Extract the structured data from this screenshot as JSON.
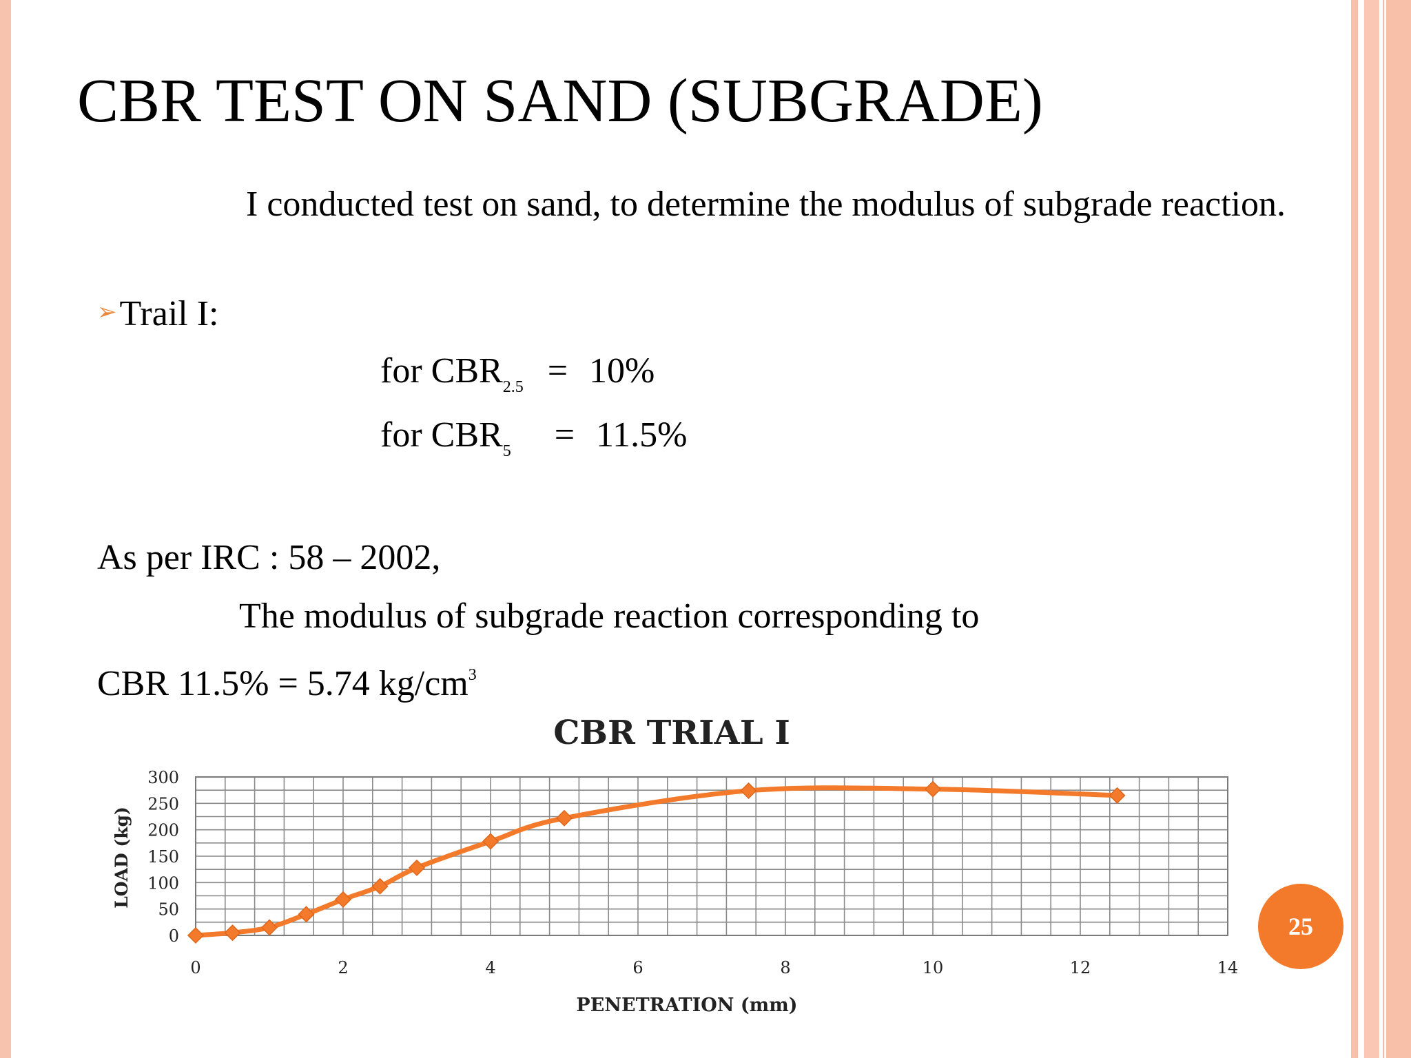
{
  "slide": {
    "title": "CBR TEST ON SAND (SUBGRADE)",
    "intro": "I conducted test on sand, to determine the modulus of subgrade reaction.",
    "trial_label": "Trail I:",
    "bullet_icon": "arrow-bullet-icon",
    "eq1": {
      "prefix": "for CBR",
      "sub": "2.5",
      "sign": "=",
      "value": "10%"
    },
    "eq2": {
      "prefix": "for CBR",
      "sub": "5",
      "sign": "=",
      "value": "11.5%"
    },
    "irc": "As per IRC : 58 – 2002,",
    "modulus_line": "The modulus of subgrade reaction corresponding to",
    "cbr_value": "CBR 11.5% = 5.74 kg/cm",
    "cbr_value_sup": "3",
    "page_number": "25"
  },
  "colors": {
    "accent": "#f47a2b",
    "border": "#f8c3ae",
    "series": "#f47a2b"
  },
  "chart_data": {
    "type": "line",
    "title": "CBR TRIAL I",
    "xlabel": "PENETRATION (mm)",
    "ylabel": "LOAD (kg)",
    "xlim": [
      0,
      14
    ],
    "ylim": [
      0,
      300
    ],
    "xticks": [
      0,
      2,
      4,
      6,
      8,
      10,
      12,
      14
    ],
    "yticks": [
      0,
      50,
      100,
      150,
      200,
      250,
      300
    ],
    "grid": true,
    "x": [
      0,
      0.5,
      1,
      1.5,
      2,
      2.5,
      3,
      4,
      5,
      7.5,
      10,
      12.5
    ],
    "series": [
      {
        "values": [
          0,
          5,
          15,
          40,
          68,
          93,
          128,
          178,
          222,
          274,
          277,
          265
        ]
      }
    ]
  }
}
